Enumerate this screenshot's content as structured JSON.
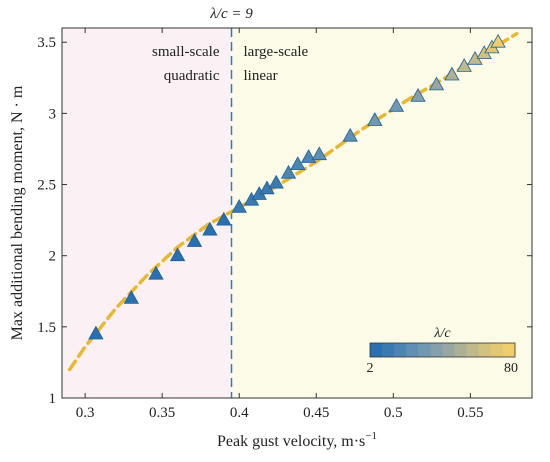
{
  "chart_data": {
    "type": "scatter",
    "xlabel": "Peak gust velocity, m·s",
    "xlabel_sup": "−1",
    "ylabel": "Max additional bending moment, N · m",
    "xlim": [
      0.285,
      0.59
    ],
    "ylim": [
      1.0,
      3.6
    ],
    "xticks": [
      0.3,
      0.35,
      0.4,
      0.45,
      0.5,
      0.55
    ],
    "xtick_labels": [
      "0.3",
      "0.35",
      "0.4",
      "0.45",
      "0.5",
      "0.55"
    ],
    "yticks": [
      1,
      1.5,
      2,
      2.5,
      3,
      3.5
    ],
    "ytick_labels": [
      "1",
      "1.5",
      "2",
      "2.5",
      "3",
      "3.5"
    ],
    "grid": false,
    "region_divider": {
      "x": 0.395,
      "label": "λ/c = 9",
      "color": "#2b7bc4"
    },
    "regions": [
      {
        "name": "small-scale",
        "line1": "small-scale",
        "line2": "quadratic",
        "x_range": [
          0.285,
          0.395
        ],
        "color": "#fbf1f4"
      },
      {
        "name": "large-scale",
        "line1": "large-scale",
        "line2": "linear",
        "x_range": [
          0.395,
          0.59
        ],
        "color": "#fbfbe8"
      }
    ],
    "fit_line": {
      "color": "#e8b830",
      "x": [
        0.29,
        0.3,
        0.32,
        0.34,
        0.36,
        0.38,
        0.395,
        0.42,
        0.45,
        0.48,
        0.51,
        0.54,
        0.565,
        0.58
      ],
      "y": [
        1.2,
        1.36,
        1.63,
        1.86,
        2.06,
        2.22,
        2.31,
        2.46,
        2.66,
        2.89,
        3.1,
        3.29,
        3.46,
        3.56
      ]
    },
    "series": [
      {
        "marker": "triangle",
        "x": [
          0.307,
          0.33,
          0.346,
          0.36,
          0.371,
          0.381,
          0.39,
          0.4,
          0.408,
          0.413,
          0.418,
          0.424,
          0.432,
          0.438,
          0.445,
          0.452,
          0.472,
          0.488,
          0.502,
          0.516,
          0.528,
          0.538,
          0.546,
          0.553,
          0.559,
          0.564,
          0.568
        ],
        "y": [
          1.45,
          1.7,
          1.87,
          2.0,
          2.1,
          2.18,
          2.25,
          2.34,
          2.39,
          2.43,
          2.47,
          2.51,
          2.58,
          2.64,
          2.69,
          2.71,
          2.84,
          2.95,
          3.05,
          3.12,
          3.2,
          3.27,
          3.33,
          3.38,
          3.42,
          3.46,
          3.5
        ],
        "lambda_c": [
          2,
          3,
          4,
          5,
          6,
          7,
          8,
          9,
          10,
          11,
          12,
          14,
          16,
          18,
          20,
          22,
          26,
          30,
          34,
          38,
          42,
          48,
          54,
          60,
          66,
          72,
          80
        ]
      }
    ],
    "colorbar": {
      "title": "λ/c",
      "min": 2,
      "max": 80,
      "min_label": "2",
      "max_label": "80",
      "colors": [
        "#2a6fb0",
        "#3a7ab3",
        "#4c85b4",
        "#5f90b3",
        "#7098b0",
        "#84a0aa",
        "#98a8a0",
        "#acb195",
        "#c0ba8a",
        "#d3c27e",
        "#e3c874",
        "#f0cd6c"
      ],
      "position": "bottom-right"
    }
  }
}
